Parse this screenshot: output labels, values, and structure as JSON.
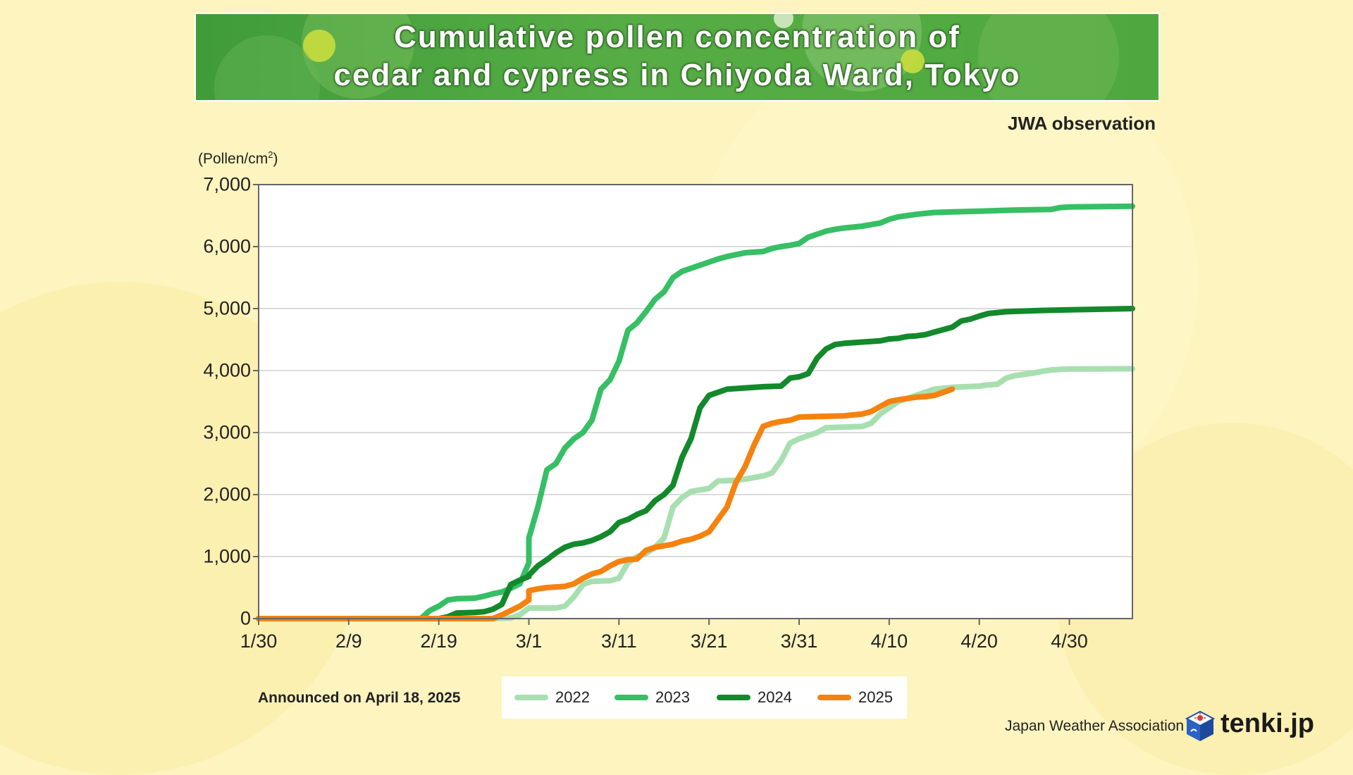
{
  "title": "Cumulative pollen concentration of\ncedar and cypress in Chiyoda Ward, Tokyo",
  "source": "JWA observation",
  "unit_label": "(Pollen/cm",
  "unit_sup": "2",
  "unit_close": ")",
  "announcement": "Announced on April 18, 2025",
  "footer": {
    "organization": "Japan Weather Association",
    "brand": "tenki.jp"
  },
  "colors": {
    "2022": "#a8dfb0",
    "2023": "#36bf64",
    "2024": "#13892b",
    "2025": "#f5820f",
    "background": "#fdf4bf",
    "banner": "#4ea83f"
  },
  "chart_data": {
    "type": "line",
    "title": "Cumulative pollen concentration of cedar and cypress in Chiyoda Ward, Tokyo",
    "xlabel": "",
    "ylabel": "(Pollen/cm²)",
    "ylim": [
      0,
      7000
    ],
    "xlim": [
      "1/30",
      "5/7"
    ],
    "x_ticks": [
      "1/30",
      "2/9",
      "2/19",
      "3/1",
      "3/11",
      "3/21",
      "3/31",
      "4/10",
      "4/20",
      "4/30"
    ],
    "y_ticks": [
      "0",
      "1,000",
      "2,000",
      "3,000",
      "4,000",
      "5,000",
      "6,000",
      "7,000"
    ],
    "grid": "horizontal",
    "legend_position": "bottom",
    "series": [
      {
        "name": "2022",
        "points": [
          [
            "1/30",
            0
          ],
          [
            "2/25",
            0
          ],
          [
            "2/27",
            10
          ],
          [
            "2/28",
            60
          ],
          [
            "3/1",
            170
          ],
          [
            "3/4",
            170
          ],
          [
            "3/5",
            200
          ],
          [
            "3/6",
            350
          ],
          [
            "3/7",
            550
          ],
          [
            "3/8",
            600
          ],
          [
            "3/10",
            610
          ],
          [
            "3/11",
            650
          ],
          [
            "3/12",
            900
          ],
          [
            "3/13",
            1000
          ],
          [
            "3/14",
            1050
          ],
          [
            "3/15",
            1150
          ],
          [
            "3/16",
            1300
          ],
          [
            "3/17",
            1800
          ],
          [
            "3/18",
            1950
          ],
          [
            "3/19",
            2050
          ],
          [
            "3/21",
            2100
          ],
          [
            "3/22",
            2220
          ],
          [
            "3/24",
            2230
          ],
          [
            "3/25",
            2250
          ],
          [
            "3/27",
            2300
          ],
          [
            "3/28",
            2350
          ],
          [
            "3/29",
            2550
          ],
          [
            "3/30",
            2830
          ],
          [
            "3/31",
            2900
          ],
          [
            "4/1",
            2950
          ],
          [
            "4/2",
            3000
          ],
          [
            "4/3",
            3080
          ],
          [
            "4/7",
            3100
          ],
          [
            "4/8",
            3150
          ],
          [
            "4/9",
            3300
          ],
          [
            "4/10",
            3400
          ],
          [
            "4/11",
            3500
          ],
          [
            "4/13",
            3600
          ],
          [
            "4/15",
            3700
          ],
          [
            "4/17",
            3730
          ],
          [
            "4/20",
            3750
          ],
          [
            "4/21",
            3770
          ],
          [
            "4/22",
            3780
          ],
          [
            "4/23",
            3880
          ],
          [
            "4/24",
            3920
          ],
          [
            "4/26",
            3960
          ],
          [
            "4/27",
            3990
          ],
          [
            "4/28",
            4010
          ],
          [
            "4/29",
            4020
          ],
          [
            "4/30",
            4025
          ],
          [
            "5/7",
            4030
          ]
        ]
      },
      {
        "name": "2023",
        "points": [
          [
            "1/30",
            0
          ],
          [
            "2/17",
            0
          ],
          [
            "2/18",
            130
          ],
          [
            "2/19",
            200
          ],
          [
            "2/20",
            300
          ],
          [
            "2/21",
            320
          ],
          [
            "2/23",
            330
          ],
          [
            "2/24",
            360
          ],
          [
            "2/25",
            400
          ],
          [
            "2/26",
            430
          ],
          [
            "2/27",
            490
          ],
          [
            "2/28",
            560
          ],
          [
            "2/29",
            900
          ],
          [
            "3/1",
            1300
          ],
          [
            "3/2",
            1800
          ],
          [
            "3/3",
            2400
          ],
          [
            "3/4",
            2500
          ],
          [
            "3/5",
            2750
          ],
          [
            "3/6",
            2900
          ],
          [
            "3/7",
            3000
          ],
          [
            "3/8",
            3200
          ],
          [
            "3/9",
            3700
          ],
          [
            "3/10",
            3850
          ],
          [
            "3/11",
            4150
          ],
          [
            "3/12",
            4650
          ],
          [
            "3/13",
            4770
          ],
          [
            "3/14",
            4950
          ],
          [
            "3/15",
            5150
          ],
          [
            "3/16",
            5270
          ],
          [
            "3/17",
            5500
          ],
          [
            "3/18",
            5600
          ],
          [
            "3/19",
            5650
          ],
          [
            "3/20",
            5700
          ],
          [
            "3/21",
            5750
          ],
          [
            "3/22",
            5800
          ],
          [
            "3/23",
            5840
          ],
          [
            "3/24",
            5870
          ],
          [
            "3/25",
            5900
          ],
          [
            "3/27",
            5920
          ],
          [
            "3/28",
            5970
          ],
          [
            "3/29",
            6000
          ],
          [
            "3/30",
            6020
          ],
          [
            "3/31",
            6050
          ],
          [
            "4/1",
            6150
          ],
          [
            "4/2",
            6200
          ],
          [
            "4/3",
            6250
          ],
          [
            "4/4",
            6280
          ],
          [
            "4/5",
            6300
          ],
          [
            "4/7",
            6330
          ],
          [
            "4/9",
            6380
          ],
          [
            "4/10",
            6440
          ],
          [
            "4/11",
            6480
          ],
          [
            "4/12",
            6500
          ],
          [
            "4/13",
            6520
          ],
          [
            "4/15",
            6550
          ],
          [
            "4/17",
            6560
          ],
          [
            "4/20",
            6570
          ],
          [
            "4/24",
            6590
          ],
          [
            "4/28",
            6600
          ],
          [
            "4/29",
            6630
          ],
          [
            "4/30",
            6640
          ],
          [
            "5/7",
            6650
          ]
        ]
      },
      {
        "name": "2024",
        "points": [
          [
            "1/30",
            0
          ],
          [
            "2/19",
            0
          ],
          [
            "2/20",
            30
          ],
          [
            "2/21",
            90
          ],
          [
            "2/23",
            100
          ],
          [
            "2/24",
            110
          ],
          [
            "2/25",
            150
          ],
          [
            "2/26",
            230
          ],
          [
            "2/27",
            550
          ],
          [
            "2/28",
            620
          ],
          [
            "2/29",
            680
          ],
          [
            "3/1",
            700
          ],
          [
            "3/2",
            850
          ],
          [
            "3/3",
            950
          ],
          [
            "3/4",
            1060
          ],
          [
            "3/5",
            1150
          ],
          [
            "3/6",
            1200
          ],
          [
            "3/7",
            1220
          ],
          [
            "3/8",
            1260
          ],
          [
            "3/9",
            1320
          ],
          [
            "3/10",
            1400
          ],
          [
            "3/11",
            1550
          ],
          [
            "3/12",
            1600
          ],
          [
            "3/13",
            1680
          ],
          [
            "3/14",
            1740
          ],
          [
            "3/15",
            1900
          ],
          [
            "3/16",
            2000
          ],
          [
            "3/17",
            2150
          ],
          [
            "3/18",
            2600
          ],
          [
            "3/19",
            2900
          ],
          [
            "3/20",
            3400
          ],
          [
            "3/21",
            3600
          ],
          [
            "3/22",
            3650
          ],
          [
            "3/23",
            3700
          ],
          [
            "3/25",
            3720
          ],
          [
            "3/27",
            3740
          ],
          [
            "3/29",
            3750
          ],
          [
            "3/30",
            3880
          ],
          [
            "3/31",
            3900
          ],
          [
            "4/1",
            3950
          ],
          [
            "4/2",
            4200
          ],
          [
            "4/3",
            4350
          ],
          [
            "4/4",
            4420
          ],
          [
            "4/5",
            4440
          ],
          [
            "4/7",
            4460
          ],
          [
            "4/9",
            4480
          ],
          [
            "4/10",
            4510
          ],
          [
            "4/11",
            4520
          ],
          [
            "4/12",
            4550
          ],
          [
            "4/13",
            4560
          ],
          [
            "4/14",
            4580
          ],
          [
            "4/15",
            4620
          ],
          [
            "4/17",
            4700
          ],
          [
            "4/18",
            4800
          ],
          [
            "4/19",
            4830
          ],
          [
            "4/20",
            4880
          ],
          [
            "4/21",
            4920
          ],
          [
            "4/23",
            4950
          ],
          [
            "4/27",
            4970
          ],
          [
            "4/30",
            4980
          ],
          [
            "5/7",
            5000
          ]
        ]
      },
      {
        "name": "2025",
        "points": [
          [
            "1/30",
            0
          ],
          [
            "2/25",
            0
          ],
          [
            "2/26",
            60
          ],
          [
            "2/27",
            130
          ],
          [
            "2/28",
            200
          ],
          [
            "2/29",
            300
          ],
          [
            "3/1",
            450
          ],
          [
            "3/2",
            480
          ],
          [
            "3/3",
            500
          ],
          [
            "3/5",
            520
          ],
          [
            "3/6",
            560
          ],
          [
            "3/7",
            650
          ],
          [
            "3/8",
            720
          ],
          [
            "3/9",
            760
          ],
          [
            "3/10",
            850
          ],
          [
            "3/11",
            920
          ],
          [
            "3/12",
            950
          ],
          [
            "3/13",
            960
          ],
          [
            "3/14",
            1100
          ],
          [
            "3/15",
            1150
          ],
          [
            "3/17",
            1200
          ],
          [
            "3/18",
            1250
          ],
          [
            "3/19",
            1280
          ],
          [
            "3/20",
            1330
          ],
          [
            "3/21",
            1400
          ],
          [
            "3/22",
            1600
          ],
          [
            "3/23",
            1800
          ],
          [
            "3/24",
            2200
          ],
          [
            "3/25",
            2450
          ],
          [
            "3/26",
            2800
          ],
          [
            "3/27",
            3100
          ],
          [
            "3/28",
            3150
          ],
          [
            "3/29",
            3180
          ],
          [
            "3/30",
            3200
          ],
          [
            "3/31",
            3250
          ],
          [
            "4/2",
            3260
          ],
          [
            "4/5",
            3270
          ],
          [
            "4/7",
            3300
          ],
          [
            "4/8",
            3340
          ],
          [
            "4/9",
            3420
          ],
          [
            "4/10",
            3500
          ],
          [
            "4/11",
            3530
          ],
          [
            "4/12",
            3550
          ],
          [
            "4/13",
            3570
          ],
          [
            "4/14",
            3580
          ],
          [
            "4/15",
            3600
          ],
          [
            "4/16",
            3650
          ],
          [
            "4/17",
            3700
          ]
        ]
      }
    ]
  }
}
